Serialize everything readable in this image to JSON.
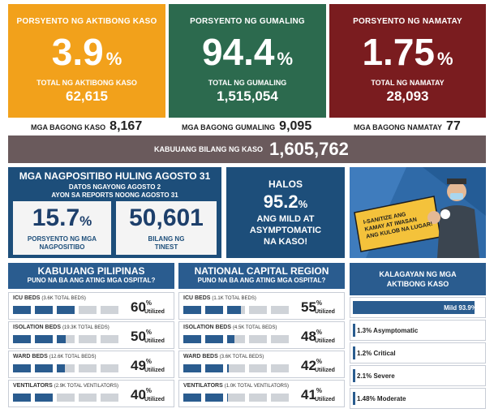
{
  "stats": {
    "active": {
      "title": "PORSYENTO NG AKTIBONG KASO",
      "percent": "3.9",
      "pct_sign": "%",
      "sub": "TOTAL NG AKTIBONG KASO",
      "value": "62,615",
      "color": "#f2a11b"
    },
    "recovered": {
      "title": "PORSYENTO NG GUMALING",
      "percent": "94.4",
      "pct_sign": "%",
      "sub": "TOTAL NG GUMALING",
      "value": "1,515,054",
      "color": "#2c6a4e"
    },
    "deaths": {
      "title": "PORSYENTO NG NAMATAY",
      "percent": "1.75",
      "pct_sign": "%",
      "sub": "TOTAL NG NAMATAY",
      "value": "28,093",
      "color": "#7a1c1f"
    }
  },
  "new_cases": {
    "cases": {
      "label": "MGA BAGONG KASO",
      "value": "8,167"
    },
    "recovered": {
      "label": "MGA BAGONG GUMALING",
      "value": "9,095"
    },
    "deaths": {
      "label": "MGA BAGONG NAMATAY",
      "value": "77"
    }
  },
  "total": {
    "label": "KABUUANG BILANG NG KASO",
    "value": "1,605,762"
  },
  "positivity": {
    "heading": "MGA NAGPOSITIBO HULING AGOSTO 31",
    "line1": "DATOS NGAYONG AGOSTO 2",
    "line2": "AYON SA REPORTS NOONG AGOSTO 31",
    "rate": {
      "value": "15.7",
      "pct": "%",
      "caption1": "PORSYENTO NG MGA",
      "caption2": "NAGPOSITIBO"
    },
    "tested": {
      "value": "50,601",
      "caption1": "BILANG NG",
      "caption2": "TINEST"
    }
  },
  "mild": {
    "l1": "HALOS",
    "value": "95.2",
    "pct": "%",
    "l2": "ANG MILD AT",
    "l3": "ASYMPTOMATIC",
    "l4": "NA KASO!"
  },
  "art": {
    "l1": "I-SANITIZE ANG",
    "l2": "KAMAY AT IWASAN",
    "l3": "ANG KULOB NA LUGAR!"
  },
  "hospitals": [
    {
      "title": "KABUUANG PILIPINAS",
      "subtitle": "PUNO NA BA ANG ATING MGA OSPITAL?",
      "rows": [
        {
          "label": "ICU BEDS",
          "note": "(3.6K TOTAL BEDS)",
          "value": "60",
          "pct": "%",
          "util": "Utilized",
          "fraction": 0.6
        },
        {
          "label": "ISOLATION BEDS",
          "note": "(19.3K TOTAL BEDS)",
          "value": "50",
          "pct": "%",
          "util": "Utilized",
          "fraction": 0.5
        },
        {
          "label": "WARD BEDS",
          "note": "(12.6K TOTAL BEDS)",
          "value": "49",
          "pct": "%",
          "util": "Utilized",
          "fraction": 0.49
        },
        {
          "label": "VENTILATORS",
          "note": "(2.9K TOTAL VENTILATORS)",
          "value": "40",
          "pct": "%",
          "util": "Utilized",
          "fraction": 0.4
        }
      ]
    },
    {
      "title": "NATIONAL CAPITAL REGION",
      "subtitle": "PUNO NA BA ANG ATING MGA OSPITAL?",
      "rows": [
        {
          "label": "ICU BEDS",
          "note": "(1.1K TOTAL BEDS)",
          "value": "55",
          "pct": "%",
          "util": "Utilized",
          "fraction": 0.55
        },
        {
          "label": "ISOLATION BEDS",
          "note": "(4.5K TOTAL BEDS)",
          "value": "48",
          "pct": "%",
          "util": "Utilized",
          "fraction": 0.48
        },
        {
          "label": "WARD BEDS",
          "note": "(3.6K TOTAL BEDS)",
          "value": "42",
          "pct": "%",
          "util": "Utilized",
          "fraction": 0.42
        },
        {
          "label": "VENTILATORS",
          "note": "(1.0K TOTAL VENTILATORS)",
          "value": "41",
          "pct": "%",
          "util": "Utilized",
          "fraction": 0.41
        }
      ]
    }
  ],
  "kalagayan": {
    "title1": "KALAGAYAN NG MGA",
    "title2": "AKTIBONG KASO",
    "rows": [
      {
        "label": "Mild 93.9%",
        "fraction": 0.939
      },
      {
        "label": "1.3% Asymptomatic",
        "fraction": 0.013
      },
      {
        "label": "1.2% Critical",
        "fraction": 0.012
      },
      {
        "label": "2.1% Severe",
        "fraction": 0.021
      },
      {
        "label": "1.48% Moderate",
        "fraction": 0.0148
      }
    ]
  },
  "colors": {
    "blue": "#2a5c8f",
    "navy": "#1d4e7a",
    "grey_bar": "#6a5a5c",
    "bar_empty": "#cfd3d8"
  }
}
